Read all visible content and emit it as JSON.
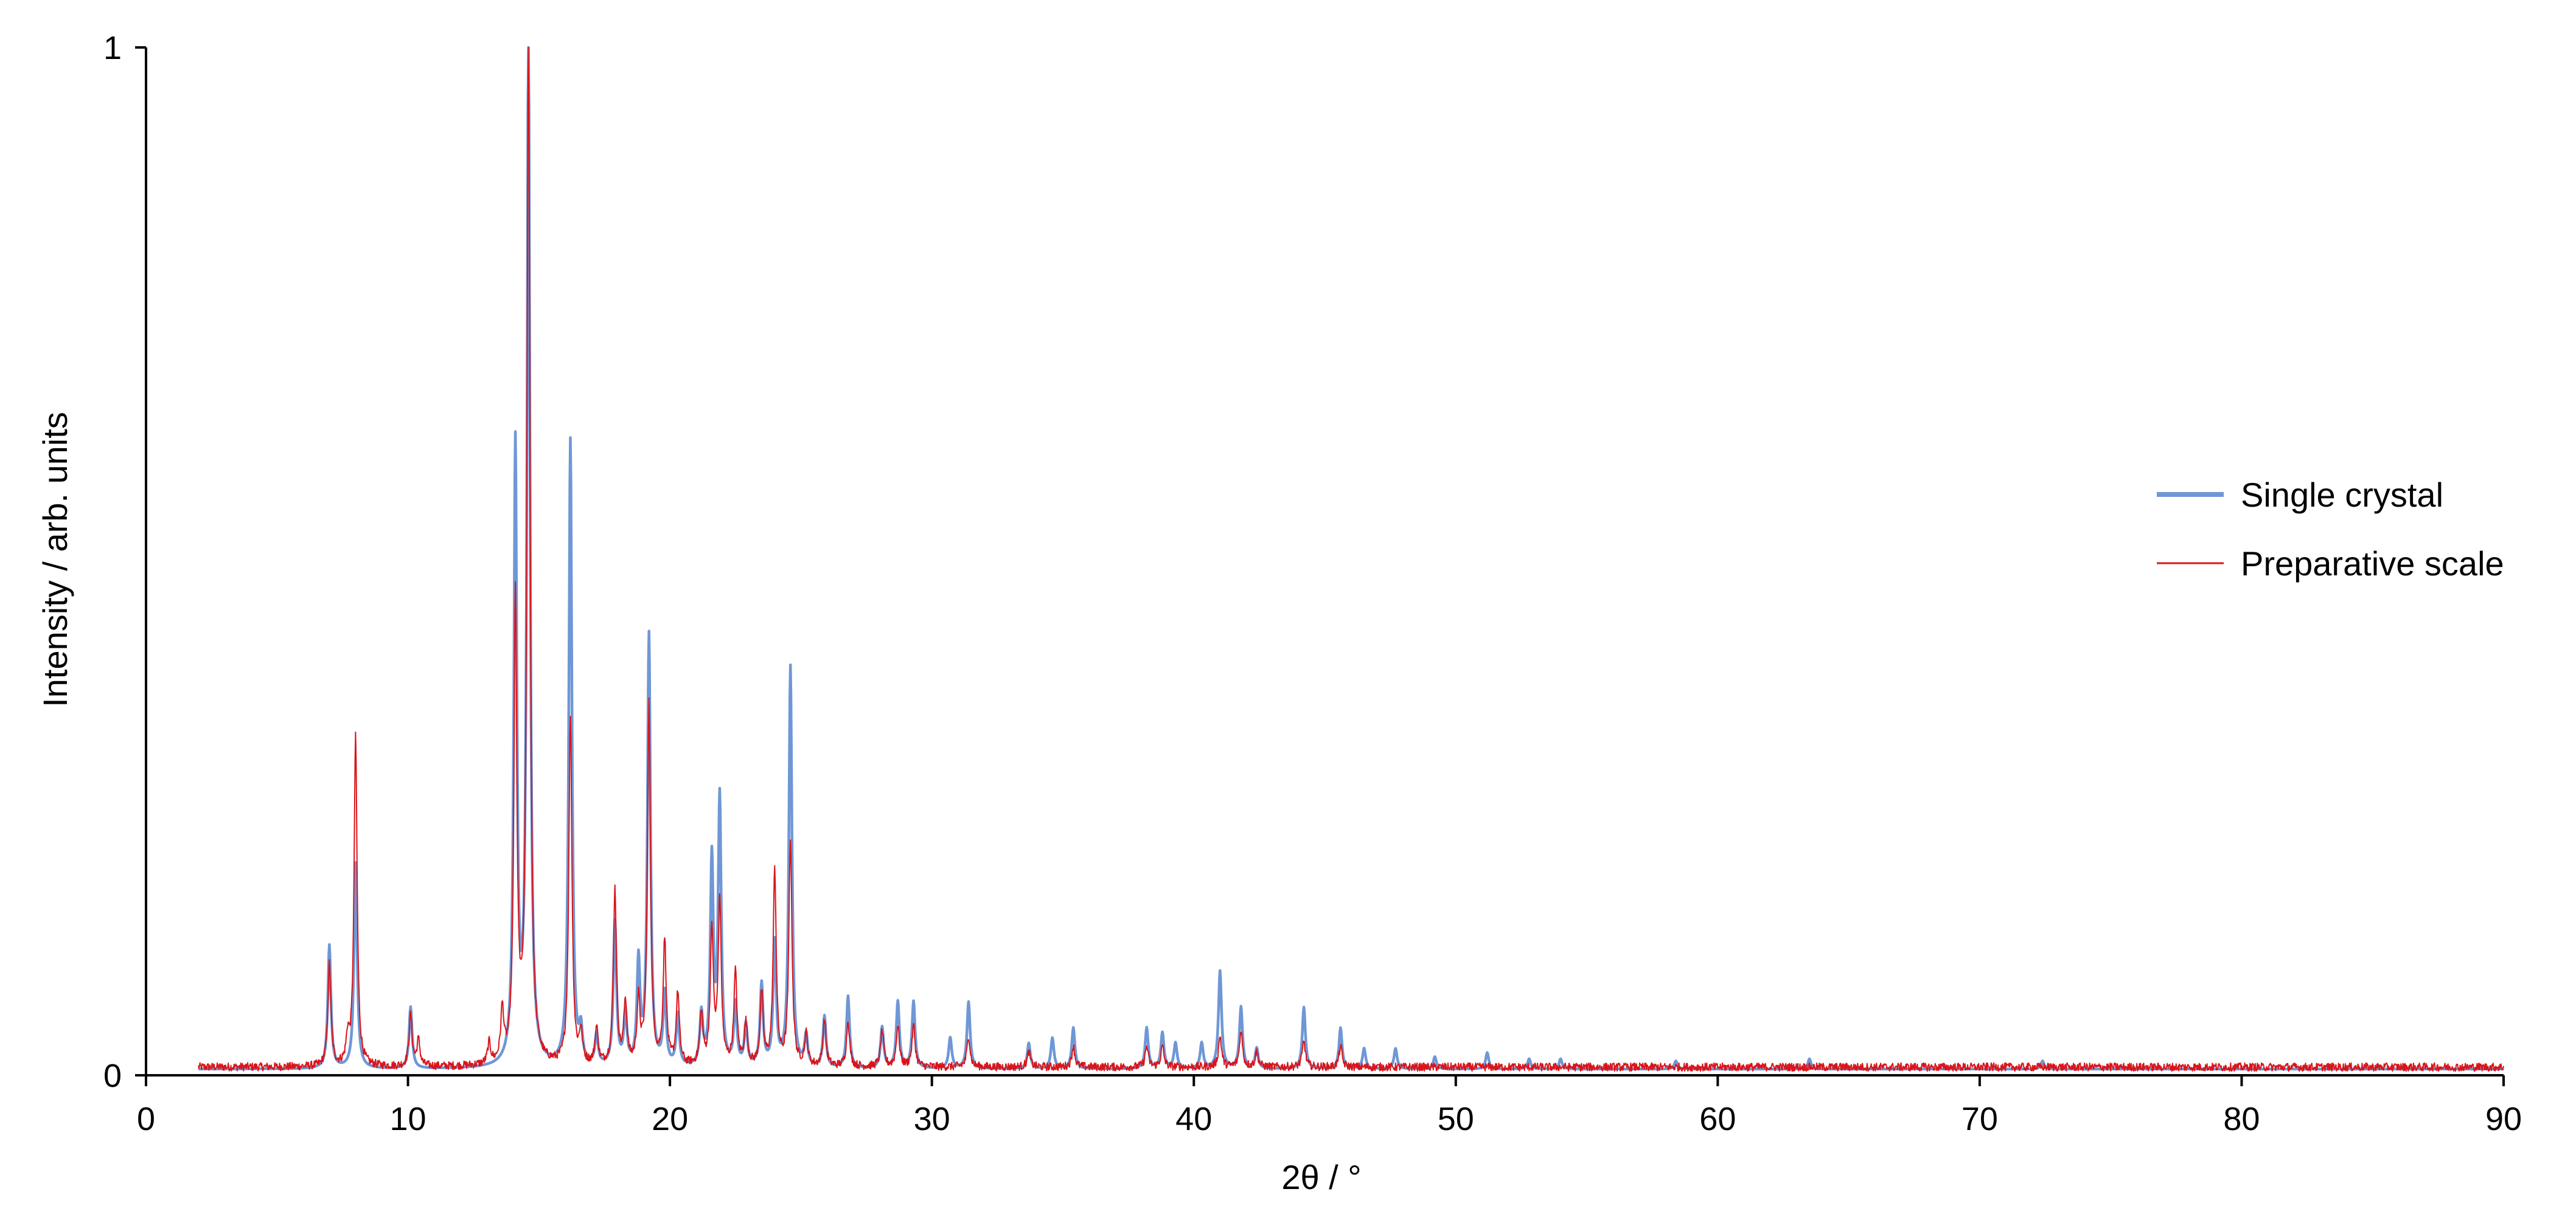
{
  "chart_data": {
    "type": "line",
    "title": "",
    "xlabel": "2θ / °",
    "ylabel": "Intensity / arb. units",
    "xlim": [
      0,
      90
    ],
    "ylim": [
      0,
      1
    ],
    "x_ticks": [
      0,
      10,
      20,
      30,
      40,
      50,
      60,
      70,
      80,
      90
    ],
    "y_ticks": [
      0,
      1
    ],
    "grid": false,
    "legend_position": "right",
    "x_range": [
      2,
      90
    ],
    "series": [
      {
        "name": "Single crystal",
        "color": "#6f97d6",
        "baseline": 0.006,
        "peaks": [
          [
            7.0,
            0.12
          ],
          [
            8.0,
            0.2
          ],
          [
            10.1,
            0.06
          ],
          [
            14.1,
            0.6
          ],
          [
            14.6,
            1.0
          ],
          [
            16.2,
            0.61
          ],
          [
            16.6,
            0.03
          ],
          [
            17.2,
            0.03
          ],
          [
            17.9,
            0.14
          ],
          [
            18.3,
            0.05
          ],
          [
            18.8,
            0.1
          ],
          [
            19.2,
            0.42
          ],
          [
            19.8,
            0.07
          ],
          [
            20.3,
            0.05
          ],
          [
            21.2,
            0.05
          ],
          [
            21.6,
            0.2
          ],
          [
            21.9,
            0.26
          ],
          [
            22.5,
            0.06
          ],
          [
            22.9,
            0.04
          ],
          [
            23.5,
            0.08
          ],
          [
            24.0,
            0.12
          ],
          [
            24.6,
            0.39
          ],
          [
            25.2,
            0.03
          ],
          [
            25.9,
            0.05
          ],
          [
            26.8,
            0.07
          ],
          [
            28.1,
            0.04
          ],
          [
            28.7,
            0.065
          ],
          [
            29.3,
            0.065
          ],
          [
            30.7,
            0.03
          ],
          [
            31.4,
            0.065
          ],
          [
            33.7,
            0.025
          ],
          [
            34.6,
            0.03
          ],
          [
            35.4,
            0.04
          ],
          [
            38.2,
            0.04
          ],
          [
            38.8,
            0.035
          ],
          [
            39.3,
            0.025
          ],
          [
            40.3,
            0.025
          ],
          [
            41.0,
            0.095
          ],
          [
            41.8,
            0.06
          ],
          [
            42.4,
            0.02
          ],
          [
            44.2,
            0.06
          ],
          [
            45.6,
            0.04
          ],
          [
            46.5,
            0.02
          ],
          [
            47.7,
            0.02
          ],
          [
            49.2,
            0.012
          ],
          [
            51.2,
            0.016
          ],
          [
            52.8,
            0.01
          ],
          [
            54.0,
            0.01
          ],
          [
            58.4,
            0.008
          ],
          [
            63.5,
            0.01
          ],
          [
            72.4,
            0.008
          ]
        ]
      },
      {
        "name": "Preparative scale",
        "color": "#d9151b",
        "baseline": 0.008,
        "noise": 0.004,
        "peaks": [
          [
            7.0,
            0.1
          ],
          [
            7.7,
            0.025
          ],
          [
            8.0,
            0.32
          ],
          [
            10.1,
            0.05
          ],
          [
            10.4,
            0.025
          ],
          [
            13.1,
            0.02
          ],
          [
            13.6,
            0.05
          ],
          [
            14.1,
            0.45
          ],
          [
            14.6,
            1.0
          ],
          [
            16.2,
            0.34
          ],
          [
            16.6,
            0.03
          ],
          [
            17.2,
            0.035
          ],
          [
            17.9,
            0.17
          ],
          [
            18.3,
            0.06
          ],
          [
            18.8,
            0.06
          ],
          [
            19.2,
            0.35
          ],
          [
            19.8,
            0.12
          ],
          [
            20.3,
            0.07
          ],
          [
            21.2,
            0.05
          ],
          [
            21.6,
            0.13
          ],
          [
            21.9,
            0.16
          ],
          [
            22.5,
            0.09
          ],
          [
            22.9,
            0.04
          ],
          [
            23.5,
            0.07
          ],
          [
            24.0,
            0.19
          ],
          [
            24.6,
            0.22
          ],
          [
            25.2,
            0.03
          ],
          [
            25.9,
            0.045
          ],
          [
            26.8,
            0.045
          ],
          [
            28.1,
            0.035
          ],
          [
            28.7,
            0.04
          ],
          [
            29.3,
            0.04
          ],
          [
            31.4,
            0.03
          ],
          [
            33.7,
            0.015
          ],
          [
            35.4,
            0.02
          ],
          [
            38.2,
            0.02
          ],
          [
            38.8,
            0.02
          ],
          [
            41.0,
            0.03
          ],
          [
            41.8,
            0.035
          ],
          [
            42.4,
            0.015
          ],
          [
            44.2,
            0.025
          ],
          [
            45.6,
            0.02
          ]
        ]
      }
    ]
  }
}
